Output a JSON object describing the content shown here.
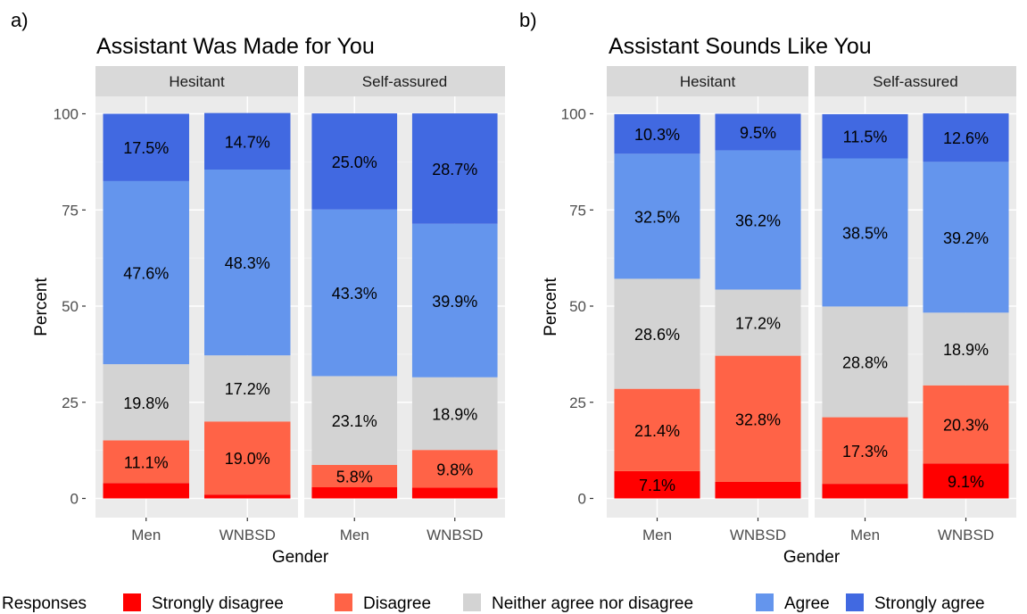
{
  "legend": {
    "title": "Responses",
    "items": [
      {
        "label": "Strongly disagree",
        "color": "#ff0000"
      },
      {
        "label": "Disagree",
        "color": "#ff6347"
      },
      {
        "label": "Neither agree nor disagree",
        "color": "#d3d3d3"
      },
      {
        "label": "Agree",
        "color": "#6495ed"
      },
      {
        "label": "Strongly agree",
        "color": "#4169e1"
      }
    ]
  },
  "chart_data": [
    {
      "panel_letter": "a)",
      "type": "bar",
      "stacked": true,
      "title": "Assistant Was Made for You",
      "xlabel": "Gender",
      "ylabel": "Percent",
      "ylim": [
        0,
        100
      ],
      "yticks": [
        "0",
        "25",
        "50",
        "75",
        "100"
      ],
      "facets": [
        {
          "label": "Hesitant",
          "categories": [
            "Men",
            "WNBSD"
          ],
          "stacks": [
            {
              "values": [
                4.0,
                11.1,
                19.8,
                47.6,
                17.5
              ],
              "labels": [
                "",
                "11.1%",
                "19.8%",
                "47.6%",
                "17.5%"
              ]
            },
            {
              "values": [
                1.0,
                19.0,
                17.2,
                48.3,
                14.7
              ],
              "labels": [
                "",
                "19.0%",
                "17.2%",
                "48.3%",
                "14.7%"
              ]
            }
          ]
        },
        {
          "label": "Self-assured",
          "categories": [
            "Men",
            "WNBSD"
          ],
          "stacks": [
            {
              "values": [
                2.9,
                5.8,
                23.1,
                43.3,
                25.0
              ],
              "labels": [
                "",
                "5.8%",
                "23.1%",
                "43.3%",
                "25.0%"
              ]
            },
            {
              "values": [
                2.8,
                9.8,
                18.9,
                39.9,
                28.7
              ],
              "labels": [
                "",
                "9.8%",
                "18.9%",
                "39.9%",
                "28.7%"
              ]
            }
          ]
        }
      ]
    },
    {
      "panel_letter": "b)",
      "type": "bar",
      "stacked": true,
      "title": "Assistant Sounds Like You",
      "xlabel": "Gender",
      "ylabel": "Percent",
      "ylim": [
        0,
        100
      ],
      "yticks": [
        "0",
        "25",
        "50",
        "75",
        "100"
      ],
      "facets": [
        {
          "label": "Hesitant",
          "categories": [
            "Men",
            "WNBSD"
          ],
          "stacks": [
            {
              "values": [
                7.1,
                21.4,
                28.6,
                32.5,
                10.3
              ],
              "labels": [
                "7.1%",
                "21.4%",
                "28.6%",
                "32.5%",
                "10.3%"
              ]
            },
            {
              "values": [
                4.3,
                32.8,
                17.2,
                36.2,
                9.5
              ],
              "labels": [
                "",
                "32.8%",
                "17.2%",
                "36.2%",
                "9.5%"
              ]
            }
          ]
        },
        {
          "label": "Self-assured",
          "categories": [
            "Men",
            "WNBSD"
          ],
          "stacks": [
            {
              "values": [
                3.8,
                17.3,
                28.8,
                38.5,
                11.5
              ],
              "labels": [
                "",
                "17.3%",
                "28.8%",
                "38.5%",
                "11.5%"
              ]
            },
            {
              "values": [
                9.1,
                20.3,
                18.9,
                39.2,
                12.6
              ],
              "labels": [
                "9.1%",
                "20.3%",
                "18.9%",
                "39.2%",
                "12.6%"
              ]
            }
          ]
        }
      ]
    }
  ]
}
